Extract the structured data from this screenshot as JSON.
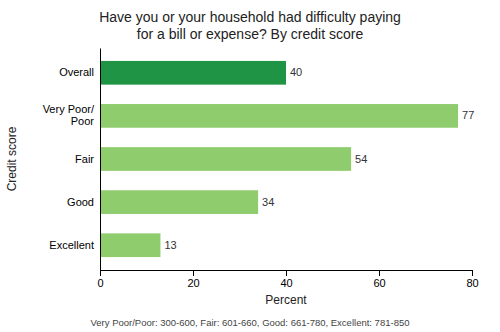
{
  "chart_data": {
    "type": "bar",
    "orientation": "horizontal",
    "title": "Have you or your household had difficulty paying\nfor a bill or expense? By credit score",
    "categories": [
      "Overall",
      "Very Poor/\nPoor",
      "Fair",
      "Good",
      "Excellent"
    ],
    "values": [
      40,
      77,
      54,
      34,
      13
    ],
    "colors": [
      "#1e9444",
      "#8fcc6e",
      "#8fcc6e",
      "#8fcc6e",
      "#8fcc6e"
    ],
    "xlabel": "Percent",
    "ylabel": "Credit score",
    "xlim": [
      0,
      80
    ],
    "xticks": [
      0,
      20,
      40,
      60,
      80
    ],
    "footnote": "Very Poor/Poor: 300-600, Fair: 601-660, Good: 661-780, Excellent: 781-850",
    "data_labels": true,
    "grid": false
  }
}
